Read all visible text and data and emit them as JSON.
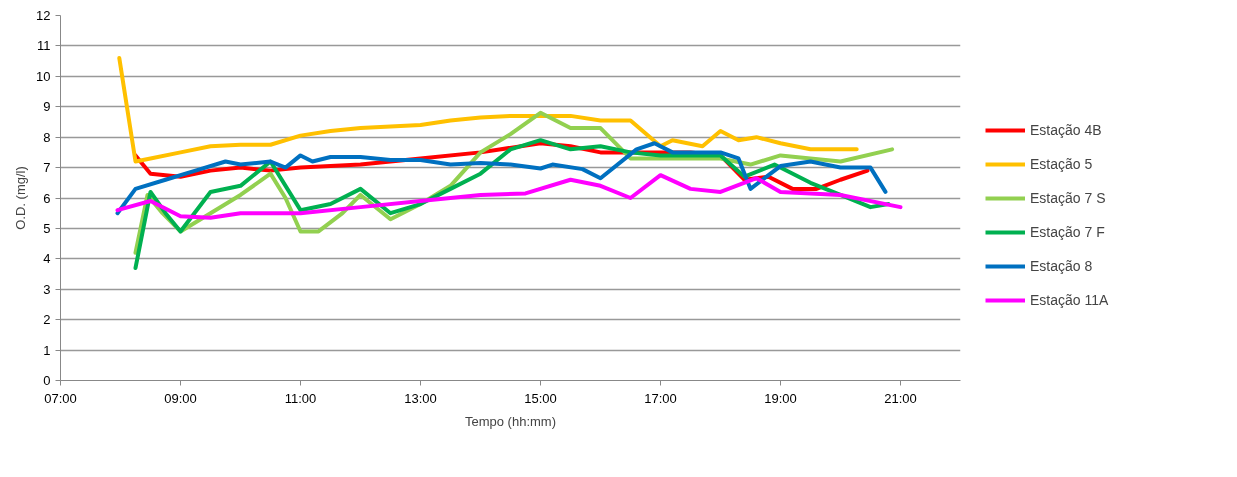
{
  "chart_data": {
    "type": "line",
    "xlabel": "Tempo (hh:mm)",
    "ylabel": "O.D. (mg/l)",
    "xlim": [
      7,
      22
    ],
    "ylim": [
      0,
      12
    ],
    "xticks": [
      {
        "value": 7,
        "label": "07:00"
      },
      {
        "value": 9,
        "label": "09:00"
      },
      {
        "value": 11,
        "label": "11:00"
      },
      {
        "value": 13,
        "label": "13:00"
      },
      {
        "value": 15,
        "label": "15:00"
      },
      {
        "value": 17,
        "label": "17:00"
      },
      {
        "value": 19,
        "label": "19:00"
      },
      {
        "value": 21,
        "label": "21:00"
      }
    ],
    "yticks": [
      0,
      1,
      2,
      3,
      4,
      5,
      6,
      7,
      8,
      9,
      10,
      11,
      12
    ],
    "grid": "y",
    "legend": "right",
    "marker": "none",
    "line_style": "solid",
    "series": [
      {
        "name": "Estação 4B",
        "color": "#ff0000",
        "x": [
          8.25,
          8.5,
          9,
          9.5,
          10,
          10.5,
          11,
          12,
          13,
          14,
          15,
          15.5,
          16,
          17,
          17.5,
          18,
          18.4,
          18.8,
          19.2,
          19.6,
          20,
          20.45
        ],
        "values": [
          7.4,
          6.8,
          6.7,
          6.9,
          7.0,
          6.9,
          7.0,
          7.1,
          7.3,
          7.5,
          7.8,
          7.7,
          7.5,
          7.5,
          7.5,
          7.4,
          6.6,
          6.7,
          6.3,
          6.3,
          6.6,
          6.9
        ]
      },
      {
        "name": "Estação 5",
        "color": "#ffc000",
        "x": [
          7.98,
          8.25,
          8.5,
          9,
          9.5,
          10,
          10.5,
          11,
          11.5,
          12,
          12.5,
          13,
          13.5,
          14,
          14.5,
          15,
          15.5,
          16,
          16.5,
          17,
          17.2,
          17.7,
          18,
          18.3,
          18.6,
          19,
          19.5,
          20.27
        ],
        "values": [
          10.6,
          7.2,
          7.3,
          7.5,
          7.7,
          7.75,
          7.75,
          8.05,
          8.2,
          8.3,
          8.35,
          8.4,
          8.55,
          8.65,
          8.7,
          8.7,
          8.7,
          8.55,
          8.55,
          7.7,
          7.9,
          7.7,
          8.2,
          7.9,
          8.0,
          7.8,
          7.6,
          7.6
        ]
      },
      {
        "name": "Estação 7 S",
        "color": "#92d050",
        "x": [
          8.25,
          8.45,
          8.7,
          9,
          9.5,
          10,
          10.5,
          10.75,
          11,
          11.3,
          11.7,
          12,
          12.5,
          13,
          13.5,
          14,
          14.5,
          15,
          15.5,
          16,
          16.5,
          17,
          17.5,
          18,
          18.5,
          19,
          19.5,
          20,
          20.86
        ],
        "values": [
          4.2,
          6.1,
          5.5,
          4.9,
          5.5,
          6.1,
          6.8,
          6.0,
          4.9,
          4.9,
          5.5,
          6.1,
          5.3,
          5.8,
          6.4,
          7.5,
          8.1,
          8.8,
          8.3,
          8.3,
          7.3,
          7.3,
          7.3,
          7.3,
          7.1,
          7.4,
          7.3,
          7.2,
          7.6
        ]
      },
      {
        "name": "Estação 7 F",
        "color": "#00b050",
        "x": [
          8.25,
          8.5,
          8.75,
          9,
          9.5,
          10,
          10.5,
          11,
          11.5,
          12,
          12.5,
          13,
          13.5,
          14,
          14.5,
          15,
          15.5,
          16,
          16.5,
          17,
          18,
          18.4,
          18.9,
          19.5,
          20,
          20.5,
          20.8
        ],
        "values": [
          3.7,
          6.2,
          5.5,
          4.9,
          6.2,
          6.4,
          7.2,
          5.6,
          5.8,
          6.3,
          5.5,
          5.8,
          6.3,
          6.8,
          7.6,
          7.9,
          7.6,
          7.7,
          7.5,
          7.4,
          7.4,
          6.7,
          7.1,
          6.5,
          6.1,
          5.7,
          5.8
        ]
      },
      {
        "name": "Estação 8",
        "color": "#0070c0",
        "x": [
          7.95,
          8.25,
          8.75,
          9.25,
          9.75,
          10,
          10.5,
          10.75,
          11,
          11.2,
          11.5,
          12,
          12.5,
          13,
          13.5,
          14,
          14.5,
          15,
          15.2,
          15.7,
          16,
          16.6,
          16.9,
          17.2,
          18,
          18.3,
          18.5,
          18.7,
          19,
          19.5,
          20,
          20.5,
          20.75
        ],
        "values": [
          5.5,
          6.3,
          6.6,
          6.9,
          7.2,
          7.1,
          7.2,
          7.0,
          7.4,
          7.2,
          7.35,
          7.35,
          7.25,
          7.25,
          7.1,
          7.15,
          7.1,
          6.97,
          7.1,
          6.95,
          6.65,
          7.6,
          7.8,
          7.5,
          7.5,
          7.3,
          6.3,
          6.6,
          7.05,
          7.2,
          7.0,
          7.0,
          6.2
        ]
      },
      {
        "name": "Estação 11A",
        "color": "#ff00ff",
        "x": [
          7.95,
          8.5,
          9,
          9.5,
          10,
          11,
          12,
          13,
          14,
          14.75,
          15.5,
          16,
          16.5,
          17,
          17.5,
          18,
          18.6,
          19,
          20,
          21
        ],
        "values": [
          5.6,
          5.9,
          5.4,
          5.35,
          5.5,
          5.5,
          5.7,
          5.9,
          6.1,
          6.15,
          6.6,
          6.4,
          6.0,
          6.75,
          6.3,
          6.2,
          6.65,
          6.2,
          6.1,
          5.7
        ]
      }
    ]
  }
}
